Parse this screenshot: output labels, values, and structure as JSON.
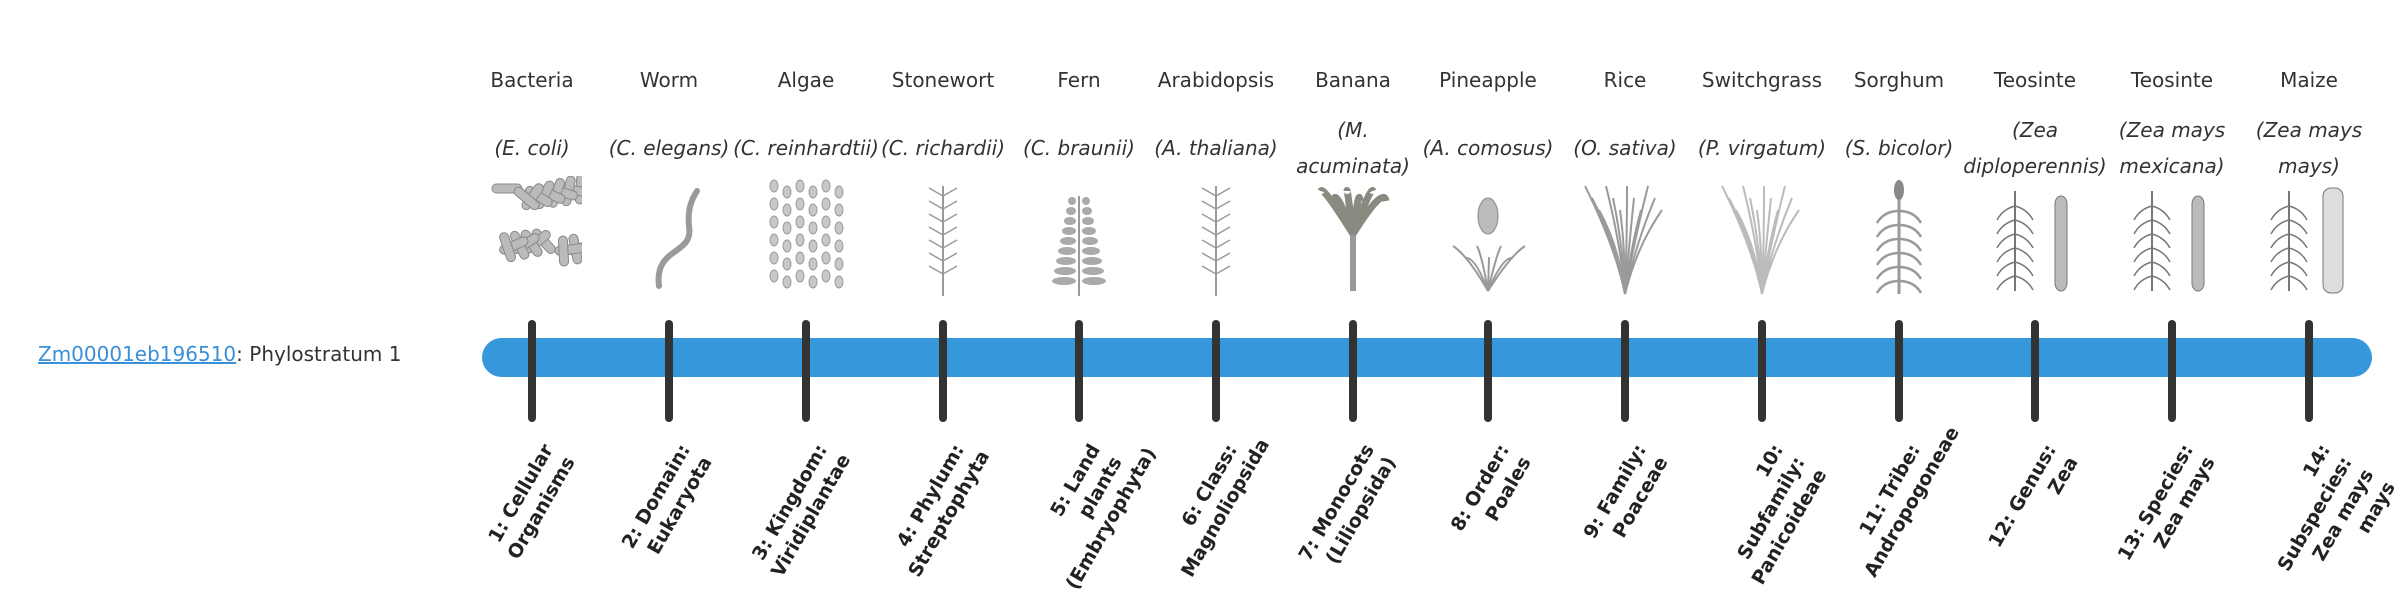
{
  "gene": {
    "id": "Zm00001eb196510",
    "suffix": ": Phylostratum 1"
  },
  "colors": {
    "bar": "#3797db",
    "link": "#3a8fd9",
    "tick": "#333333"
  },
  "strata": [
    {
      "common": "Bacteria",
      "sci": "(E. coli)",
      "rank": "1: Cellular Organisms",
      "icon": "bacteria-icon"
    },
    {
      "common": "Worm",
      "sci": "(C. elegans)",
      "rank": "2: Domain: Eukaryota",
      "icon": "worm-icon"
    },
    {
      "common": "Algae",
      "sci": "(C. reinhardtii)",
      "rank": "3: Kingdom: Viridiplantae",
      "icon": "algae-icon"
    },
    {
      "common": "Stonewort",
      "sci": "(C. richardii)",
      "rank": "4: Phylum: Streptophyta",
      "icon": "stonewort-icon"
    },
    {
      "common": "Fern",
      "sci": "(C. braunii)",
      "rank": "5: Land plants (Embryophyta)",
      "icon": "fern-icon"
    },
    {
      "common": "Arabidopsis",
      "sci": "(A. thaliana)",
      "rank": "6: Class: Magnoliopsida",
      "icon": "arabidopsis-icon"
    },
    {
      "common": "Banana",
      "sci": "(M. acuminata)",
      "rank": "7: Monocots (Liliopsida)",
      "icon": "banana-icon"
    },
    {
      "common": "Pineapple",
      "sci": "(A. comosus)",
      "rank": "8: Order: Poales",
      "icon": "pineapple-icon"
    },
    {
      "common": "Rice",
      "sci": "(O. sativa)",
      "rank": "9: Family: Poaceae",
      "icon": "rice-icon"
    },
    {
      "common": "Switchgrass",
      "sci": "(P. virgatum)",
      "rank": "10: Subfamily: Panicoideae",
      "icon": "switchgrass-icon"
    },
    {
      "common": "Sorghum",
      "sci": "(S. bicolor)",
      "rank": "11: Tribe: Andropogoneae",
      "icon": "sorghum-icon"
    },
    {
      "common": "Teosinte",
      "sci": "(Zea diploperennis)",
      "rank": "12: Genus: Zea",
      "icon": "teosinte-icon"
    },
    {
      "common": "Teosinte",
      "sci": "(Zea mays mexicana)",
      "rank": "13: Species: Zea mays",
      "icon": "teosinte-mexicana-icon"
    },
    {
      "common": "Maize",
      "sci": "(Zea mays mays)",
      "rank": "14: Subspecies: Zea mays mays",
      "icon": "maize-icon"
    }
  ]
}
